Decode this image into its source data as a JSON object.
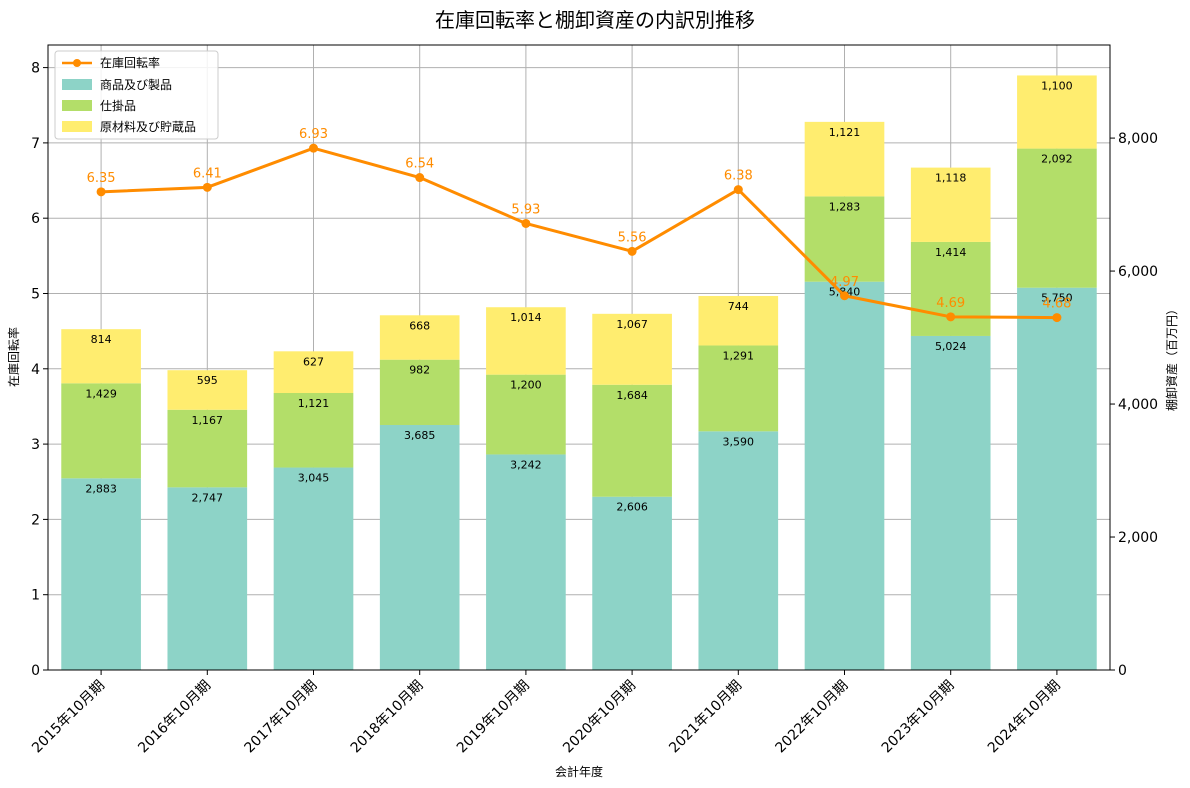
{
  "chart_data": {
    "type": "bar",
    "title": "在庫回転率と棚卸資産の内訳別推移",
    "xlabel": "会計年度",
    "ylabel_left": "在庫回転率",
    "ylabel_right": "棚卸資産（百万円）",
    "categories": [
      "2015年10月期",
      "2016年10月期",
      "2017年10月期",
      "2018年10月期",
      "2019年10月期",
      "2020年10月期",
      "2021年10月期",
      "2022年10月期",
      "2023年10月期",
      "2024年10月期"
    ],
    "stacked": true,
    "series": [
      {
        "name": "商品及び製品",
        "axis": "right",
        "color": "#8dd3c7",
        "values": [
          2883,
          2747,
          3045,
          3685,
          3242,
          2606,
          3590,
          5840,
          5024,
          5750
        ],
        "labels": [
          "2,883",
          "2,747",
          "3,045",
          "3,685",
          "3,242",
          "2,606",
          "3,590",
          "5,840",
          "5,024",
          "5,750"
        ]
      },
      {
        "name": "仕掛品",
        "axis": "right",
        "color": "#b3de69",
        "values": [
          1429,
          1167,
          1121,
          982,
          1200,
          1684,
          1291,
          1283,
          1414,
          2092
        ],
        "labels": [
          "1,429",
          "1,167",
          "1,121",
          "982",
          "1,200",
          "1,684",
          "1,291",
          "1,283",
          "1,414",
          "2,092"
        ]
      },
      {
        "name": "原材料及び貯蔵品",
        "axis": "right",
        "color": "#ffed6f",
        "values": [
          814,
          595,
          627,
          668,
          1014,
          1067,
          744,
          1121,
          1118,
          1100
        ],
        "labels": [
          "814",
          "595",
          "627",
          "668",
          "1,014",
          "1,067",
          "744",
          "1,121",
          "1,118",
          "1,100"
        ]
      }
    ],
    "line": {
      "name": "在庫回転率",
      "axis": "left",
      "color": "#ff8c00",
      "values": [
        6.35,
        6.41,
        6.93,
        6.54,
        5.93,
        5.56,
        6.38,
        4.97,
        4.69,
        4.68
      ],
      "labels": [
        "6.35",
        "6.41",
        "6.93",
        "6.54",
        "5.93",
        "5.56",
        "6.38",
        "4.97",
        "4.69",
        "4.68"
      ]
    },
    "ylim_left": [
      0,
      8.3
    ],
    "yticks_left": [
      "0",
      "1",
      "2",
      "3",
      "4",
      "5",
      "6",
      "7",
      "8"
    ],
    "ylim_right": [
      0,
      9400
    ],
    "yticks_right_values": [
      0,
      2000,
      4000,
      6000,
      8000
    ],
    "yticks_right": [
      "0",
      "2,000",
      "4,000",
      "6,000",
      "8,000"
    ],
    "grid": true,
    "legend_position": "top-left"
  }
}
